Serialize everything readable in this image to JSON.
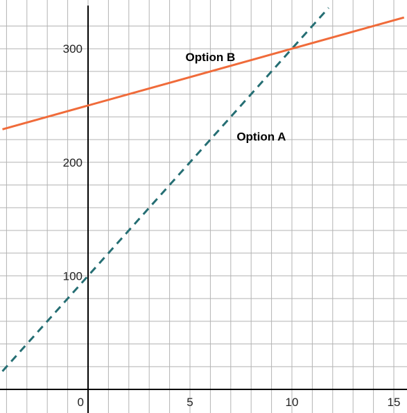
{
  "chart_data": {
    "type": "line",
    "title": "",
    "xlabel": "",
    "ylabel": "",
    "xlim": [
      -4.2,
      15.5
    ],
    "ylim": [
      -10,
      338
    ],
    "grid": true,
    "x_minor_step": 1,
    "y_minor_step": 20,
    "x_ticks": [
      0,
      5,
      10,
      15
    ],
    "y_ticks": [
      100,
      200,
      300
    ],
    "x_tick_labels": [
      "0",
      "5",
      "10",
      "15"
    ],
    "y_tick_labels": [
      "100",
      "200",
      "300"
    ],
    "series": [
      {
        "name": "Option A",
        "style": "dashed",
        "color": "#256e73",
        "points": [
          [
            -4.2,
            16
          ],
          [
            11.8,
            336
          ]
        ]
      },
      {
        "name": "Option B",
        "style": "solid",
        "color": "#f06b3a",
        "points": [
          [
            -4.2,
            229
          ],
          [
            15.5,
            327.5
          ]
        ]
      }
    ],
    "annotations": [
      {
        "text": "Option B",
        "series": "Option B",
        "x": 6.0,
        "y": 289
      },
      {
        "text": "Option A",
        "series": "Option A",
        "x": 8.5,
        "y": 219
      }
    ]
  }
}
